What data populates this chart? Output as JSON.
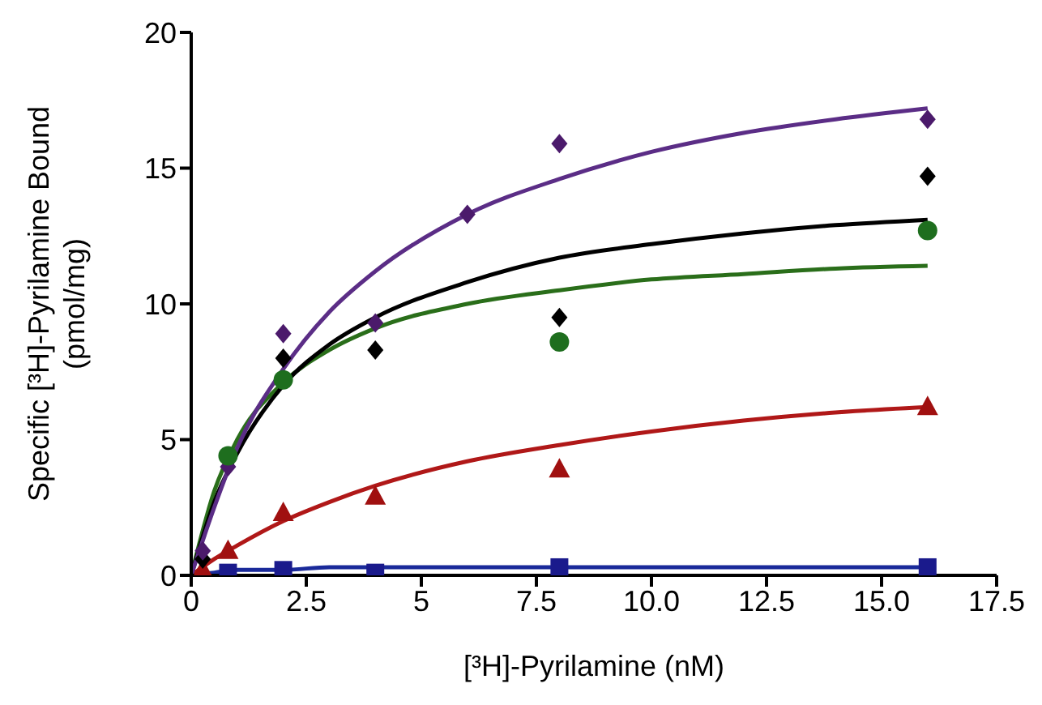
{
  "chart_data": {
    "type": "scatter",
    "xlabel": "[³H]-Pyrilamine (nM)",
    "ylabel": "Specific [³H]-Pyrilamine Bound\n(pmol/mg)",
    "xlim": [
      0,
      17.5
    ],
    "xticks": [
      0,
      2.5,
      5,
      {
        "value": 7.5,
        "label": "7.5"
      },
      {
        "value": 10,
        "label": "10.0"
      },
      {
        "value": 12.5,
        "label": "12.5"
      },
      {
        "value": 15,
        "label": "15.0"
      },
      {
        "value": 17.5,
        "label": "17.5"
      }
    ],
    "ylim": [
      0,
      20
    ],
    "yticks": [
      0,
      5,
      10,
      15,
      20
    ],
    "grid": false,
    "legend": false,
    "series": [
      {
        "type": "line",
        "color": "#5b2d86",
        "marker": "none",
        "x": [
          0,
          0.5,
          1,
          2,
          3,
          4,
          6,
          8,
          10,
          12,
          14,
          16
        ],
        "values": [
          0,
          2.5,
          4.7,
          7.6,
          9.7,
          11.2,
          13.3,
          14.6,
          15.6,
          16.3,
          16.8,
          17.2
        ]
      },
      {
        "type": "line",
        "color": "#000000",
        "marker": "none",
        "x": [
          0,
          0.5,
          1,
          2,
          3,
          4,
          6,
          8,
          10,
          12,
          14,
          16
        ],
        "values": [
          0,
          2.7,
          4.5,
          7.0,
          8.5,
          9.5,
          10.8,
          11.7,
          12.2,
          12.6,
          12.9,
          13.1
        ]
      },
      {
        "type": "line",
        "color": "#2a6e1a",
        "marker": "none",
        "x": [
          0,
          0.5,
          1,
          2,
          3,
          4,
          6,
          8,
          10,
          12,
          14,
          16
        ],
        "values": [
          0,
          3.1,
          5.0,
          7.1,
          8.3,
          9.1,
          10.0,
          10.5,
          10.9,
          11.1,
          11.3,
          11.4
        ]
      },
      {
        "type": "line",
        "color": "#b01818",
        "marker": "none",
        "x": [
          0,
          0.5,
          1,
          2,
          3,
          4,
          6,
          8,
          10,
          12,
          14,
          16
        ],
        "values": [
          0,
          0.6,
          1.1,
          2.0,
          2.7,
          3.3,
          4.2,
          4.8,
          5.3,
          5.7,
          6.0,
          6.2
        ]
      },
      {
        "type": "line",
        "color": "#1a2a9a",
        "marker": "none",
        "x": [
          0,
          0.5,
          1,
          2,
          3,
          4,
          6,
          8,
          10,
          12,
          14,
          16
        ],
        "values": [
          0,
          0.1,
          0.2,
          0.2,
          0.3,
          0.3,
          0.3,
          0.3,
          0.3,
          0.3,
          0.3,
          0.3
        ]
      },
      {
        "color": "#4b1a6b",
        "marker": "diamond",
        "x": [
          0.25,
          0.8,
          2,
          4,
          6,
          8,
          16
        ],
        "values": [
          0.9,
          4.0,
          8.9,
          9.3,
          13.3,
          15.9,
          16.8
        ]
      },
      {
        "color": "#000000",
        "marker": "diamond",
        "x": [
          0.25,
          2,
          4,
          8,
          16
        ],
        "values": [
          0.6,
          8.0,
          8.3,
          9.5,
          14.7
        ]
      },
      {
        "color": "#1e6e1e",
        "marker": "circle",
        "x": [
          0.8,
          2,
          8,
          16
        ],
        "values": [
          4.4,
          7.2,
          8.6,
          12.7
        ]
      },
      {
        "color": "#a01010",
        "marker": "triangle",
        "x": [
          0.25,
          0.8,
          2,
          4,
          8,
          16
        ],
        "values": [
          0.2,
          0.9,
          2.3,
          2.9,
          3.9,
          6.2
        ]
      },
      {
        "color": "#1a1a8c",
        "marker": "square",
        "x": [
          0.8,
          2,
          4,
          8,
          16
        ],
        "values": [
          0.1,
          0.2,
          0.1,
          0.3,
          0.3
        ]
      }
    ]
  }
}
